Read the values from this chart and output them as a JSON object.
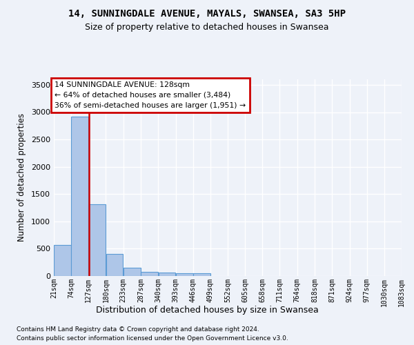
{
  "title_line1": "14, SUNNINGDALE AVENUE, MAYALS, SWANSEA, SA3 5HP",
  "title_line2": "Size of property relative to detached houses in Swansea",
  "xlabel": "Distribution of detached houses by size in Swansea",
  "ylabel": "Number of detached properties",
  "footnote1": "Contains HM Land Registry data © Crown copyright and database right 2024.",
  "footnote2": "Contains public sector information licensed under the Open Government Licence v3.0.",
  "property_size": 128,
  "property_label": "14 SUNNINGDALE AVENUE: 128sqm",
  "annotation_line1": "← 64% of detached houses are smaller (3,484)",
  "annotation_line2": "36% of semi-detached houses are larger (1,951) →",
  "bar_color": "#aec6e8",
  "bar_edge_color": "#5b9bd5",
  "marker_color": "#cc0000",
  "annotation_box_color": "#cc0000",
  "background_color": "#eef2f9",
  "grid_color": "#ffffff",
  "bins": [
    21,
    74,
    127,
    180,
    233,
    287,
    340,
    393,
    446,
    499,
    552,
    605,
    658,
    711,
    764,
    818,
    871,
    924,
    977,
    1030,
    1083
  ],
  "bin_labels": [
    "21sqm",
    "74sqm",
    "127sqm",
    "180sqm",
    "233sqm",
    "287sqm",
    "340sqm",
    "393sqm",
    "446sqm",
    "499sqm",
    "552sqm",
    "605sqm",
    "658sqm",
    "711sqm",
    "764sqm",
    "818sqm",
    "871sqm",
    "924sqm",
    "977sqm",
    "1030sqm",
    "1083sqm"
  ],
  "counts": [
    570,
    2920,
    1320,
    410,
    155,
    80,
    60,
    50,
    45,
    0,
    0,
    0,
    0,
    0,
    0,
    0,
    0,
    0,
    0,
    0
  ],
  "ylim": [
    0,
    3600
  ],
  "yticks": [
    0,
    500,
    1000,
    1500,
    2000,
    2500,
    3000,
    3500
  ]
}
